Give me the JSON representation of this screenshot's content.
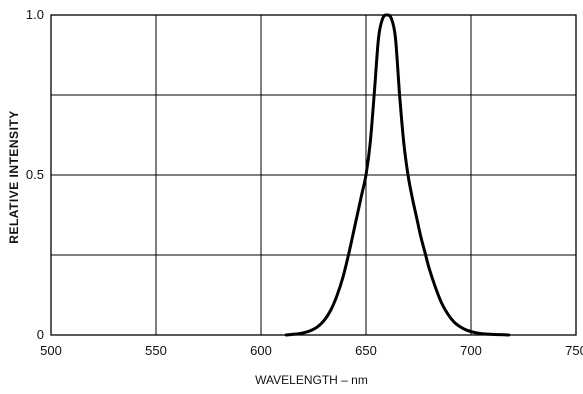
{
  "chart_data": {
    "type": "line",
    "title": "",
    "xlabel": "WAVELENGTH – nm",
    "ylabel": "RELATIVE INTENSITY",
    "xlim": [
      500,
      750
    ],
    "ylim": [
      0,
      1.0
    ],
    "x_ticks": [
      500,
      550,
      600,
      650,
      700,
      750
    ],
    "x_tick_labels": [
      "500",
      "550",
      "600",
      "650",
      "700",
      "750"
    ],
    "y_ticks": [
      0,
      0.5,
      1.0
    ],
    "y_tick_labels": [
      "0",
      "0.5",
      "1.0"
    ],
    "y_gridlines": [
      0.25,
      0.5,
      0.75,
      1.0
    ],
    "grid": true,
    "legend": "none",
    "series": [
      {
        "x": [
          612,
          615,
          618,
          621,
          624,
          627,
          630,
          633,
          636,
          639,
          642,
          645,
          648,
          650,
          652,
          654,
          656,
          658,
          660,
          662,
          664,
          666,
          668,
          670,
          672,
          674,
          676,
          678,
          680,
          683,
          686,
          689,
          692,
          695,
          698,
          701,
          704,
          707,
          710,
          714,
          718
        ],
        "values": [
          0.0,
          0.002,
          0.004,
          0.008,
          0.015,
          0.026,
          0.045,
          0.075,
          0.12,
          0.18,
          0.26,
          0.35,
          0.44,
          0.5,
          0.6,
          0.76,
          0.93,
          0.99,
          1.0,
          0.99,
          0.93,
          0.75,
          0.6,
          0.5,
          0.43,
          0.37,
          0.31,
          0.26,
          0.21,
          0.15,
          0.1,
          0.065,
          0.04,
          0.025,
          0.015,
          0.009,
          0.005,
          0.003,
          0.002,
          0.001,
          0.0
        ]
      }
    ]
  }
}
